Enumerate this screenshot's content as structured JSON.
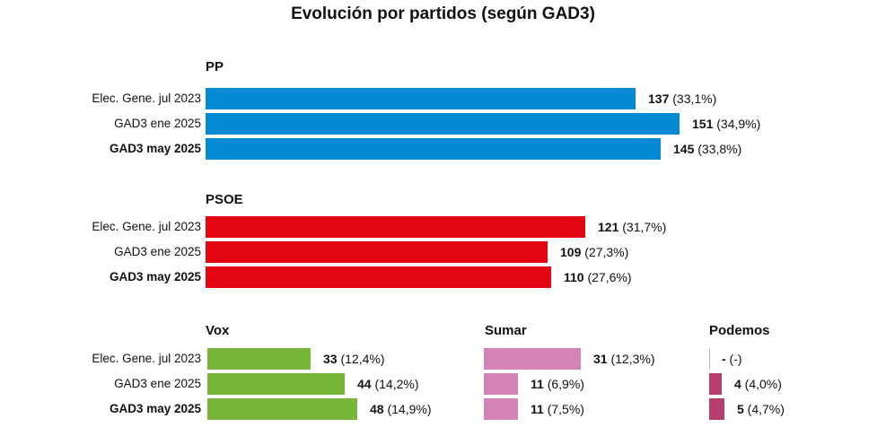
{
  "chart_data": {
    "type": "bar",
    "title": "Evolución por partidos (según GAD3)",
    "categories": [
      "Elec. Gene. jul 2023",
      "GAD3 ene 2025",
      "GAD3 may 2025"
    ],
    "parties": [
      {
        "name": "PP",
        "color": "#0489d3",
        "values": [
          137,
          151,
          145
        ],
        "value_labels": [
          "137",
          "151",
          "145"
        ],
        "pct_labels": [
          "(33,1%)",
          "(34,9%)",
          "(33,8%)"
        ]
      },
      {
        "name": "PSOE",
        "color": "#e30613",
        "values": [
          121,
          109,
          110
        ],
        "value_labels": [
          "121",
          "109",
          "110"
        ],
        "pct_labels": [
          "(31,7%)",
          "(27,3%)",
          "(27,6%)"
        ]
      },
      {
        "name": "Vox",
        "color": "#78b63a",
        "values": [
          33,
          44,
          48
        ],
        "value_labels": [
          "33",
          "44",
          "48"
        ],
        "pct_labels": [
          "(12,4%)",
          "(14,2%)",
          "(14,9%)"
        ]
      },
      {
        "name": "Sumar",
        "color": "#d483b5",
        "values": [
          31,
          11,
          11
        ],
        "value_labels": [
          "31",
          "11",
          "11"
        ],
        "pct_labels": [
          "(12,3%)",
          "(6,9%)",
          "(7,5%)"
        ]
      },
      {
        "name": "Podemos",
        "color": "#b5406d",
        "values": [
          null,
          4,
          5
        ],
        "value_labels": [
          "-",
          "4",
          "5"
        ],
        "pct_labels": [
          "(-)",
          "(4,0%)",
          "(4,7%)"
        ]
      }
    ]
  }
}
